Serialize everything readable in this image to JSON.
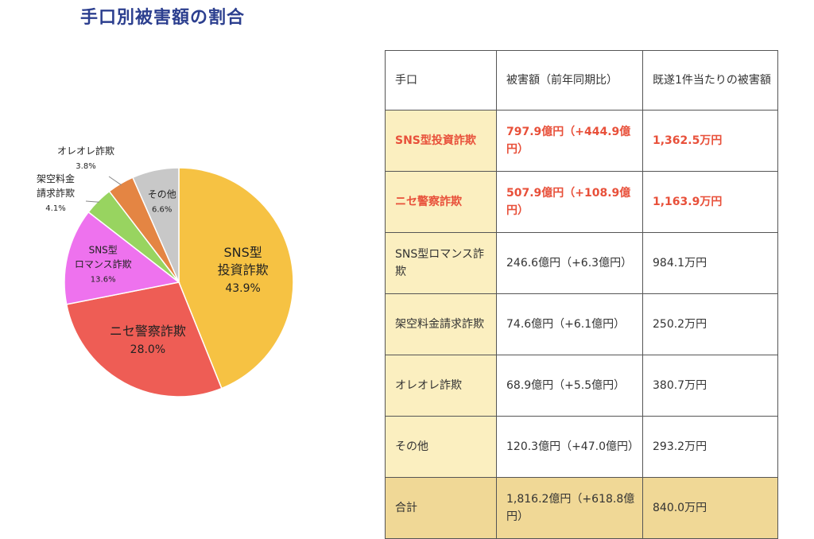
{
  "title": "手口別被害額の割合",
  "chart_data": {
    "type": "pie",
    "slices": [
      {
        "lines": [
          "SNS型",
          "投資詐欺"
        ],
        "pct_label": "43.9%",
        "value": 43.9,
        "color": "#f6c243",
        "label_pos": "inside"
      },
      {
        "lines": [
          "ニセ警察詐欺"
        ],
        "pct_label": "28.0%",
        "value": 28.0,
        "color": "#ee5d55",
        "label_pos": "inside"
      },
      {
        "lines": [
          "SNS型",
          "ロマンス詐欺"
        ],
        "pct_label": "13.6%",
        "value": 13.6,
        "color": "#ee72ee",
        "label_pos": "inside"
      },
      {
        "lines": [
          "架空料金",
          "請求詐欺"
        ],
        "pct_label": "4.1%",
        "value": 4.1,
        "color": "#98d460",
        "label_pos": "outside"
      },
      {
        "lines": [
          "オレオレ詐欺"
        ],
        "pct_label": "3.8%",
        "value": 3.8,
        "color": "#e48543",
        "label_pos": "outside"
      },
      {
        "lines": [
          "その他"
        ],
        "pct_label": "6.6%",
        "value": 6.6,
        "color": "#c8c8c8",
        "label_pos": "inside"
      }
    ],
    "start": "12 o'clock",
    "direction": "clockwise"
  },
  "table": {
    "header": [
      "手口",
      "被害額（前年同期比）",
      "既遂1件当たりの被害額"
    ],
    "rows": [
      {
        "cells": [
          "SNS型投資詐欺",
          "797.9億円（+444.9億円）",
          "1,362.5万円"
        ],
        "highlight": true
      },
      {
        "cells": [
          "ニセ警察詐欺",
          "507.9億円（+108.9億円）",
          "1,163.9万円"
        ],
        "highlight": true
      },
      {
        "cells": [
          "SNS型ロマンス詐欺",
          "246.6億円（+6.3億円）",
          "984.1万円"
        ],
        "highlight": false
      },
      {
        "cells": [
          "架空料金請求詐欺",
          "74.6億円（+6.1億円）",
          "250.2万円"
        ],
        "highlight": false
      },
      {
        "cells": [
          "オレオレ詐欺",
          "68.9億円（+5.5億円）",
          "380.7万円"
        ],
        "highlight": false
      },
      {
        "cells": [
          "その他",
          "120.3億円（+47.0億円）",
          "293.2万円"
        ],
        "highlight": false
      }
    ],
    "total": {
      "cells": [
        "合計",
        "1,816.2億円（+618.8億円）",
        "840.0万円"
      ]
    }
  }
}
